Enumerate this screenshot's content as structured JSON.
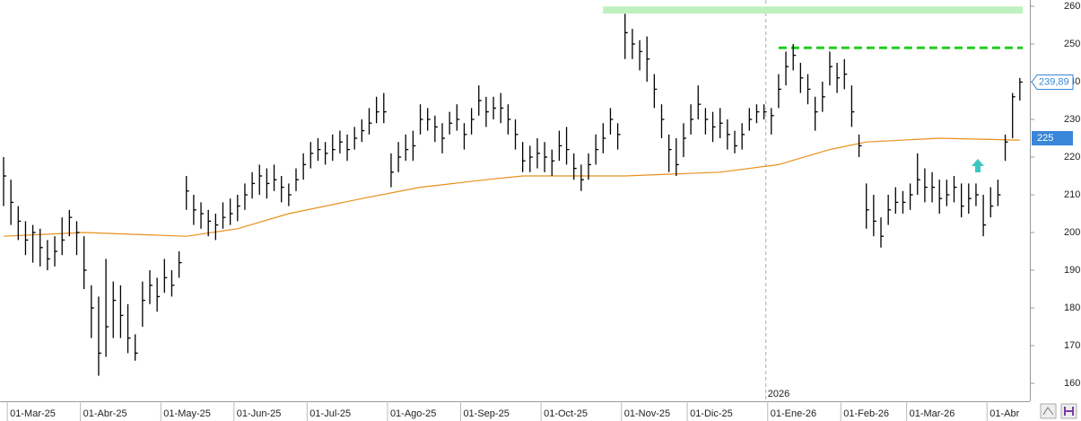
{
  "chart_data": {
    "type": "ohlc",
    "categories": [
      null,
      "01-Mar-25",
      null,
      null,
      null,
      null,
      null,
      null,
      null,
      null,
      null,
      "01-Abr-25",
      null,
      null,
      null,
      null,
      null,
      null,
      null,
      null,
      null,
      null,
      "01-May-25",
      null,
      null,
      null,
      null,
      null,
      null,
      null,
      null,
      null,
      "01-Jun-25",
      null,
      null,
      null,
      null,
      null,
      null,
      null,
      null,
      null,
      "01-Jul-25",
      null,
      null,
      null,
      null,
      null,
      null,
      null,
      null,
      null,
      null,
      "01-Ago-25",
      null,
      null,
      null,
      null,
      null,
      null,
      null,
      null,
      null,
      "01-Sep-25",
      null,
      null,
      null,
      null,
      null,
      null,
      null,
      null,
      null,
      null,
      "01-Oct-25",
      null,
      null,
      null,
      null,
      null,
      null,
      null,
      null,
      null,
      null,
      "01-Nov-25",
      null,
      null,
      null,
      null,
      null,
      null,
      null,
      null,
      "01-Dic-25",
      null,
      null,
      null,
      null,
      null,
      null,
      null,
      null,
      null,
      null,
      "01-Ene-26",
      null,
      null,
      null,
      null,
      null,
      null,
      null,
      null,
      null,
      "01-Feb-26",
      null,
      null,
      null,
      null,
      null,
      null,
      null,
      null,
      "01-Mar-26",
      null,
      null,
      null,
      null,
      null,
      null,
      null,
      null,
      null,
      null,
      "01-Abr",
      null,
      null,
      null,
      null
    ],
    "close": [
      215,
      208,
      203,
      198,
      200,
      196,
      193,
      195,
      198,
      204,
      200,
      190,
      180,
      168,
      175,
      182,
      178,
      172,
      168,
      182,
      186,
      183,
      188,
      186,
      192,
      211,
      206,
      205,
      203,
      202,
      204,
      205,
      207,
      210,
      213,
      215,
      213,
      214,
      212,
      210,
      214,
      218,
      221,
      222,
      221,
      222,
      224,
      222,
      225,
      227,
      229,
      232,
      232,
      216,
      220,
      222,
      223,
      230,
      230,
      228,
      225,
      229,
      230,
      226,
      230,
      235,
      232,
      233,
      233,
      230,
      226,
      219,
      220,
      221,
      220,
      219,
      223,
      222,
      217,
      214,
      218,
      222,
      225,
      230,
      226,
      253,
      250,
      248,
      246,
      238,
      230,
      222,
      218,
      225,
      230,
      234,
      230,
      228,
      229,
      226,
      223,
      226,
      230,
      232,
      232,
      231,
      238,
      244,
      247,
      241,
      238,
      232,
      236,
      244,
      241,
      242,
      232,
      223,
      206,
      203,
      199,
      206,
      208,
      208,
      210,
      214,
      212,
      212,
      209,
      210,
      212,
      207,
      209,
      210,
      202,
      207,
      210,
      224,
      236,
      239.89
    ],
    "high": [
      220,
      214,
      207,
      203,
      202,
      201,
      198,
      199,
      204,
      206,
      203,
      199,
      186,
      183,
      193,
      187,
      186,
      181,
      173,
      187,
      190,
      188,
      193,
      190,
      195,
      215,
      210,
      208,
      206,
      205,
      208,
      209,
      210,
      213,
      216,
      218,
      217,
      218,
      215,
      213,
      217,
      221,
      224,
      225,
      224,
      226,
      227,
      226,
      228,
      230,
      233,
      236,
      237,
      221,
      224,
      226,
      227,
      234,
      233,
      231,
      229,
      232,
      234,
      229,
      233,
      239,
      236,
      236,
      237,
      234,
      230,
      224,
      223,
      225,
      224,
      222,
      227,
      228,
      221,
      218,
      221,
      226,
      229,
      233,
      229,
      258,
      254,
      251,
      252,
      242,
      234,
      226,
      225,
      229,
      234,
      239,
      233,
      232,
      233,
      230,
      227,
      229,
      233,
      234,
      234,
      233,
      242,
      248,
      250,
      245,
      242,
      236,
      240,
      248,
      245,
      246,
      239,
      226,
      213,
      210,
      204,
      210,
      212,
      211,
      213,
      221,
      217,
      216,
      214,
      214,
      215,
      213,
      213,
      213,
      210,
      212,
      214,
      226,
      237,
      241
    ],
    "low": [
      207,
      202,
      198,
      194,
      192,
      191,
      190,
      191,
      194,
      199,
      194,
      185,
      172,
      162,
      167,
      172,
      172,
      168,
      166,
      175,
      181,
      179,
      184,
      183,
      188,
      206,
      202,
      201,
      199,
      198,
      201,
      202,
      203,
      206,
      209,
      210,
      209,
      211,
      208,
      207,
      211,
      214,
      217,
      219,
      218,
      219,
      221,
      219,
      222,
      224,
      226,
      229,
      229,
      212,
      216,
      219,
      219,
      226,
      227,
      224,
      221,
      226,
      227,
      222,
      226,
      231,
      228,
      230,
      229,
      226,
      222,
      216,
      216,
      217,
      216,
      215,
      219,
      218,
      214,
      211,
      214,
      218,
      221,
      226,
      222,
      246,
      246,
      243,
      240,
      233,
      225,
      216,
      215,
      220,
      226,
      230,
      226,
      224,
      225,
      222,
      221,
      222,
      227,
      229,
      230,
      226,
      233,
      239,
      243,
      237,
      234,
      227,
      232,
      239,
      237,
      238,
      228,
      220,
      201,
      199,
      196,
      202,
      205,
      205,
      206,
      210,
      208,
      208,
      205,
      207,
      208,
      204,
      205,
      207,
      199,
      204,
      207,
      219,
      225,
      235
    ],
    "color": "#000000",
    "moving_average": {
      "x": [
        0,
        11,
        25,
        32,
        39,
        49,
        57,
        66,
        71,
        85,
        98,
        106,
        113,
        118,
        128,
        139
      ],
      "values": [
        199,
        200,
        199,
        201,
        205,
        209,
        212,
        214,
        215,
        215,
        216,
        218,
        222,
        224,
        225,
        224.5
      ],
      "color": "#e8901c"
    },
    "levels": [
      {
        "value": 259,
        "from": 82,
        "color": "#bff0bf",
        "style": "band"
      },
      {
        "value": 249,
        "from": 106,
        "color": "#22cc22",
        "style": "dashed"
      }
    ],
    "price_labels": [
      {
        "value": 239.89,
        "label": "239,89",
        "style": "outline"
      },
      {
        "value": 225,
        "label": "225",
        "style": "filled"
      }
    ],
    "year_marker": {
      "label": "2026",
      "at": 105
    },
    "ylim": [
      160,
      260
    ],
    "yticks": [
      160,
      170,
      180,
      190,
      200,
      210,
      220,
      230,
      240,
      250,
      260
    ]
  }
}
